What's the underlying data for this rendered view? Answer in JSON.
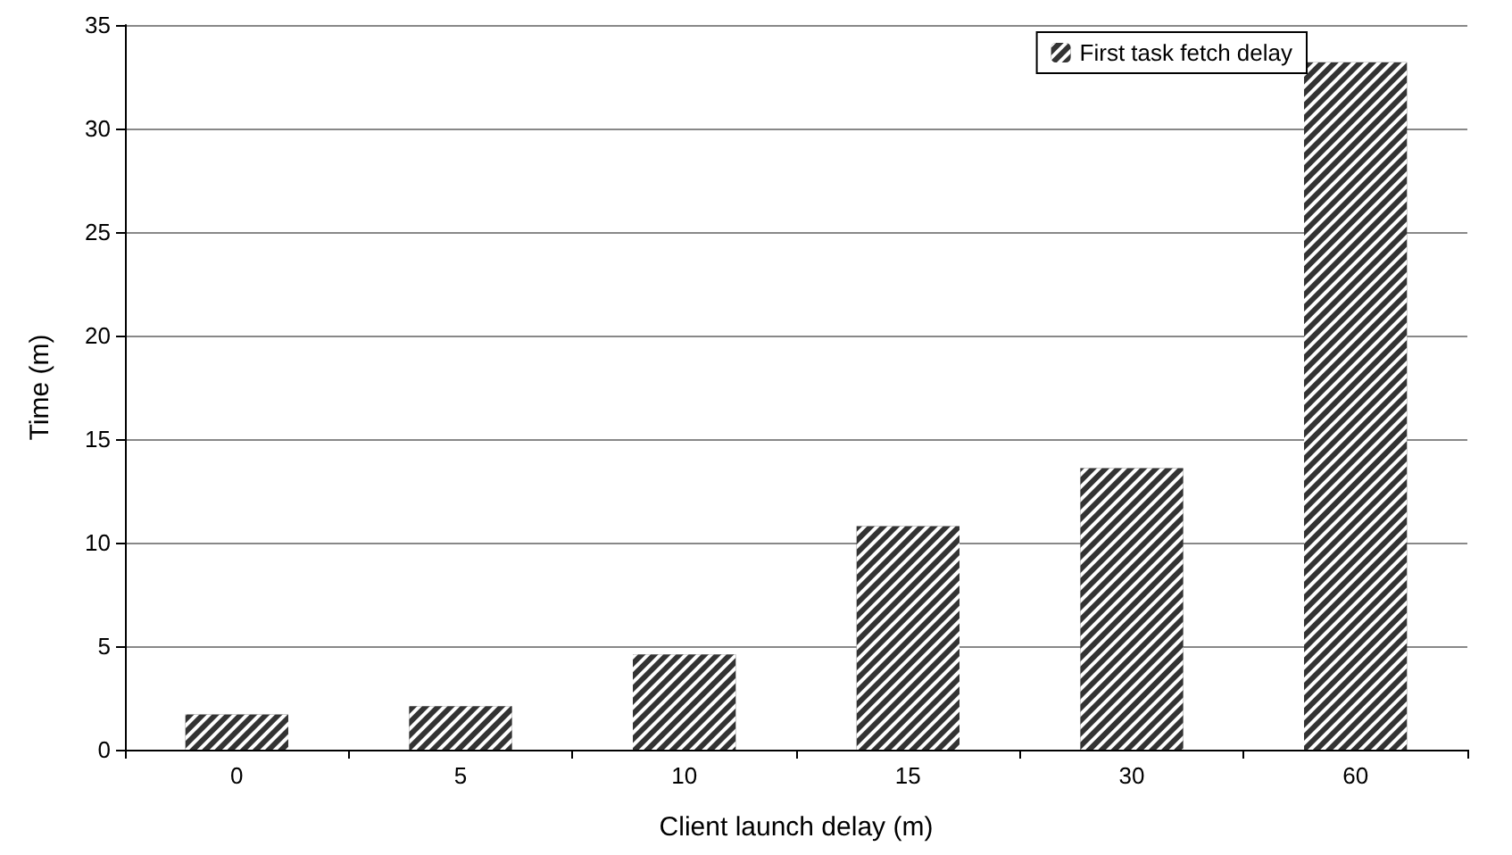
{
  "chart_data": {
    "type": "bar",
    "xlabel": "Client launch delay (m)",
    "ylabel": "Time (m)",
    "categories": [
      "0",
      "5",
      "10",
      "15",
      "30",
      "60"
    ],
    "series": [
      {
        "name": "First task fetch delay",
        "color": "#333333",
        "values": [
          1.7,
          2.1,
          4.6,
          10.8,
          13.6,
          33.2
        ]
      }
    ],
    "ylim": [
      0,
      35
    ],
    "yticks": [
      0,
      5,
      10,
      15,
      20,
      25,
      30,
      35
    ],
    "grid": "y",
    "legend": "top right"
  }
}
